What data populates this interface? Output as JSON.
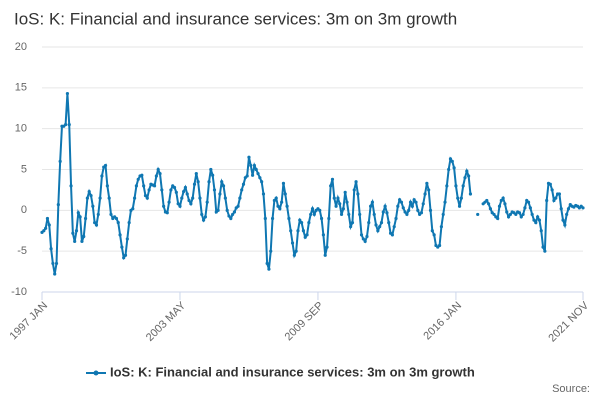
{
  "chart_data": {
    "type": "line",
    "title": "IoS: K: Financial and insurance services: 3m on 3m growth",
    "source": "Source:",
    "categories": [
      "1997 JAN",
      null,
      null,
      null,
      null,
      null,
      null,
      null,
      null,
      null,
      null,
      null,
      null,
      null,
      null,
      null,
      null,
      null,
      null,
      null,
      null,
      null,
      null,
      null,
      null,
      null,
      null,
      null,
      null,
      null,
      null,
      null,
      null,
      null,
      null,
      null,
      null,
      null,
      null,
      null,
      null,
      null,
      null,
      null,
      null,
      null,
      null,
      null,
      null,
      null,
      null,
      null,
      null,
      null,
      null,
      null,
      null,
      null,
      null,
      null,
      null,
      null,
      null,
      null,
      null,
      null,
      null,
      null,
      null,
      null,
      null,
      null,
      null,
      null,
      null,
      null,
      "2003 MAY",
      null,
      null,
      null,
      null,
      null,
      null,
      null,
      null,
      null,
      null,
      null,
      null,
      null,
      null,
      null,
      null,
      null,
      null,
      null,
      null,
      null,
      null,
      null,
      null,
      null,
      null,
      null,
      null,
      null,
      null,
      null,
      null,
      null,
      null,
      null,
      null,
      null,
      null,
      null,
      null,
      null,
      null,
      null,
      null,
      null,
      null,
      null,
      null,
      null,
      null,
      null,
      null,
      null,
      null,
      null,
      null,
      null,
      null,
      null,
      null,
      null,
      null,
      null,
      null,
      null,
      null,
      null,
      null,
      null,
      null,
      null,
      null,
      null,
      null,
      null,
      "2009 SEP",
      null,
      null,
      null,
      null,
      null,
      null,
      null,
      null,
      null,
      null,
      null,
      null,
      null,
      null,
      null,
      null,
      null,
      null,
      null,
      null,
      null,
      null,
      null,
      null,
      null,
      null,
      null,
      null,
      null,
      null,
      null,
      null,
      null,
      null,
      null,
      null,
      null,
      null,
      null,
      null,
      null,
      null,
      null,
      null,
      null,
      null,
      null,
      null,
      null,
      null,
      null,
      null,
      null,
      null,
      null,
      null,
      null,
      null,
      null,
      null,
      null,
      null,
      null,
      null,
      null,
      null,
      null,
      null,
      null,
      null,
      null,
      null,
      null,
      null,
      null,
      "2016 JAN",
      null,
      null,
      null,
      null,
      null,
      null,
      null,
      null,
      null,
      null,
      null,
      null,
      null,
      null,
      null,
      null,
      null,
      null,
      null,
      null,
      null,
      null,
      null,
      null,
      null,
      null,
      null,
      null,
      null,
      null,
      null,
      null,
      null,
      null,
      null,
      null,
      null,
      null,
      null,
      null,
      null,
      null,
      null,
      null,
      null,
      null,
      null,
      null,
      null,
      null,
      null,
      null,
      null,
      null,
      null,
      null,
      null,
      null,
      null,
      null,
      null,
      null,
      null,
      null,
      null,
      null,
      null,
      null,
      null,
      "2021 NOV"
    ],
    "series": [
      {
        "name": "IoS: K: Financial and insurance services: 3m on 3m growth",
        "color": "#0f77b2",
        "values": [
          -2.7,
          -2.5,
          -2.2,
          -1,
          -1.8,
          -4.7,
          -6.5,
          -7.8,
          -6.5,
          0.7,
          6,
          10.3,
          10.3,
          10.5,
          14.3,
          10.5,
          3,
          -2.8,
          -3.8,
          -2.5,
          -0.3,
          -0.8,
          -3.8,
          -3.2,
          -1,
          1.5,
          2.3,
          1.8,
          0.5,
          -1.5,
          -1.8,
          -0.5,
          1.5,
          4.2,
          5.3,
          5.5,
          3,
          1.5,
          -0.5,
          -1,
          -0.8,
          -1,
          -1.5,
          -3,
          -4.5,
          -5.8,
          -5.5,
          -3.5,
          -1.5,
          0,
          0.2,
          1.5,
          3,
          3.8,
          4.2,
          4.3,
          3,
          1.8,
          1.5,
          2.5,
          3.2,
          3.1,
          3,
          4.2,
          5,
          4.5,
          2.5,
          0.5,
          -0.2,
          -0.3,
          1,
          2.5,
          3,
          2.8,
          2.2,
          0.8,
          0.5,
          1.5,
          2.3,
          2.8,
          2,
          1.2,
          0.8,
          1.5,
          3.2,
          4.5,
          3.5,
          1.5,
          -0.5,
          -1.2,
          -0.8,
          1,
          3.5,
          5,
          4.3,
          2.5,
          -0.2,
          0,
          2,
          3.5,
          3,
          1.5,
          0,
          -0.7,
          -1,
          -0.5,
          -0.2,
          0.3,
          0.5,
          1.5,
          2.5,
          3.2,
          4,
          4.2,
          6.5,
          5.5,
          4.3,
          5.5,
          5,
          4.5,
          4,
          3.5,
          2,
          -1,
          -6.5,
          -7.2,
          -5,
          -1,
          1.2,
          1.5,
          0.5,
          0.2,
          1,
          3.3,
          2,
          0.5,
          -1,
          -2.5,
          -4,
          -5.5,
          -5,
          -2.5,
          -1.2,
          -1.5,
          -2.5,
          -3.3,
          -3,
          -1.5,
          -0.5,
          0.2,
          -0.5,
          0,
          0.2,
          0,
          -1,
          -3,
          -5.5,
          -4.5,
          -1,
          3,
          3.8,
          1.5,
          0.5,
          1.5,
          0.8,
          -0.5,
          0.2,
          2.2,
          1,
          -0.5,
          -2,
          -1.5,
          2.5,
          3.5,
          2,
          -0.5,
          -3,
          -3.5,
          -3.8,
          -3.2,
          -1.5,
          0.5,
          1,
          -0.5,
          -1.8,
          -2.5,
          -2,
          -1.5,
          -0.2,
          0.5,
          -0.3,
          -1.5,
          -2.8,
          -3,
          -2,
          -1,
          0.5,
          1.3,
          1,
          0.3,
          -0.2,
          -0.5,
          0,
          1,
          0.5,
          1.3,
          1,
          0,
          -0.5,
          -0.3,
          0.8,
          2,
          3.3,
          2.5,
          0,
          -2.5,
          -3,
          -4.3,
          -4.5,
          -4.3,
          -2,
          -0.5,
          1,
          3,
          5,
          6.3,
          6,
          5.2,
          3,
          1.5,
          0.5,
          1.5,
          3,
          4,
          4.8,
          4.2,
          2,
          null,
          null,
          null,
          -0.5,
          null,
          null,
          0.8,
          1,
          1.2,
          0.8,
          0.2,
          -0.3,
          -0.5,
          -0.8,
          -1,
          0.5,
          1.2,
          1.5,
          0.8,
          -0.2,
          -0.8,
          -0.5,
          -0.2,
          -0.3,
          -0.5,
          -0.2,
          -0.3,
          -0.8,
          -0.5,
          0.3,
          1.2,
          1,
          0.3,
          -0.5,
          -1.2,
          -1.5,
          -0.8,
          -1.2,
          -2.5,
          -4.5,
          -5,
          1.2,
          3.3,
          3.2,
          2.5,
          1.2,
          1.5,
          2,
          2,
          0.2,
          -1.2,
          -1.8,
          -0.5,
          0.2,
          0.7,
          0.5,
          0.4,
          0.6,
          0.5,
          0.3,
          0.5,
          0.3
        ]
      }
    ],
    "ylim": [
      -10,
      20
    ],
    "yticks": [
      -10,
      -5,
      0,
      5,
      10,
      15,
      20
    ],
    "grid": true,
    "legend": "bottom"
  }
}
